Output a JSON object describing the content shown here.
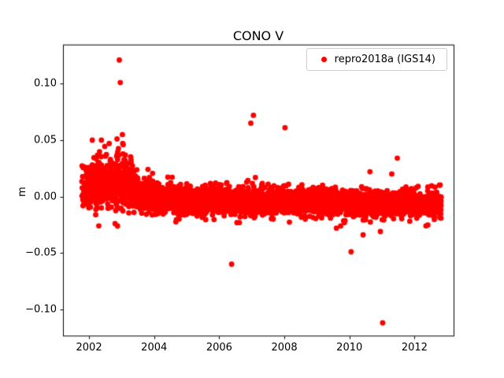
{
  "chart_data": {
    "type": "scatter",
    "title": "CONO V",
    "xlabel": "",
    "ylabel": "m",
    "legend": {
      "label": "repro2018a (IGS14)",
      "position": "upper right",
      "marker_color": "#ff0000"
    },
    "point_color": "#ff0000",
    "marker_size_pt": 6,
    "grid": false,
    "xlim": [
      2001.2,
      2013.2
    ],
    "ylim": [
      -0.124,
      0.134
    ],
    "xticks": [
      2002,
      2004,
      2006,
      2008,
      2010,
      2012
    ],
    "xtick_labels": [
      "2002",
      "2004",
      "2006",
      "2008",
      "2010",
      "2012"
    ],
    "yticks": [
      -0.1,
      -0.05,
      0.0,
      0.05,
      0.1
    ],
    "ytick_labels": [
      "−0.10",
      "−0.05",
      "0.00",
      "0.05",
      "0.10"
    ],
    "series_name": "repro2018a (IGS14)",
    "pattern_summary": "Daily vertical position residuals: noisy cluster near +0.01 m in 2002-2003 settling to a tight band around -0.005 m through 2012, with isolated outliers.",
    "seed": 7,
    "noise_segments": [
      {
        "x0": 2001.78,
        "x1": 2002.2,
        "n": 150,
        "mean0": 0.006,
        "mean1": 0.012,
        "std": 0.009
      },
      {
        "x0": 2002.2,
        "x1": 2003.3,
        "n": 380,
        "mean0": 0.014,
        "mean1": 0.012,
        "std": 0.012
      },
      {
        "x0": 2003.3,
        "x1": 2004.1,
        "n": 250,
        "mean0": 0.006,
        "mean1": -0.002,
        "std": 0.0075
      },
      {
        "x0": 2004.1,
        "x1": 2009.0,
        "n": 1600,
        "mean0": -0.003,
        "mean1": -0.005,
        "std": 0.006
      },
      {
        "x0": 2009.0,
        "x1": 2012.82,
        "n": 1260,
        "mean0": -0.005,
        "mean1": -0.007,
        "std": 0.0058
      }
    ],
    "outliers": [
      [
        2002.93,
        0.121
      ],
      [
        2002.96,
        0.101
      ],
      [
        2002.1,
        0.05
      ],
      [
        2002.38,
        0.05
      ],
      [
        2002.86,
        0.051
      ],
      [
        2002.62,
        0.047
      ],
      [
        2003.05,
        0.046
      ],
      [
        2002.3,
        -0.026
      ],
      [
        2002.8,
        -0.024
      ],
      [
        2006.38,
        -0.06
      ],
      [
        2006.97,
        0.065
      ],
      [
        2007.05,
        0.072
      ],
      [
        2008.02,
        0.061
      ],
      [
        2009.6,
        -0.028
      ],
      [
        2010.05,
        -0.049
      ],
      [
        2010.42,
        -0.034
      ],
      [
        2010.63,
        0.022
      ],
      [
        2010.95,
        -0.031
      ],
      [
        2011.02,
        -0.112
      ],
      [
        2011.3,
        0.02
      ],
      [
        2011.47,
        0.034
      ],
      [
        2012.35,
        -0.026
      ]
    ]
  }
}
